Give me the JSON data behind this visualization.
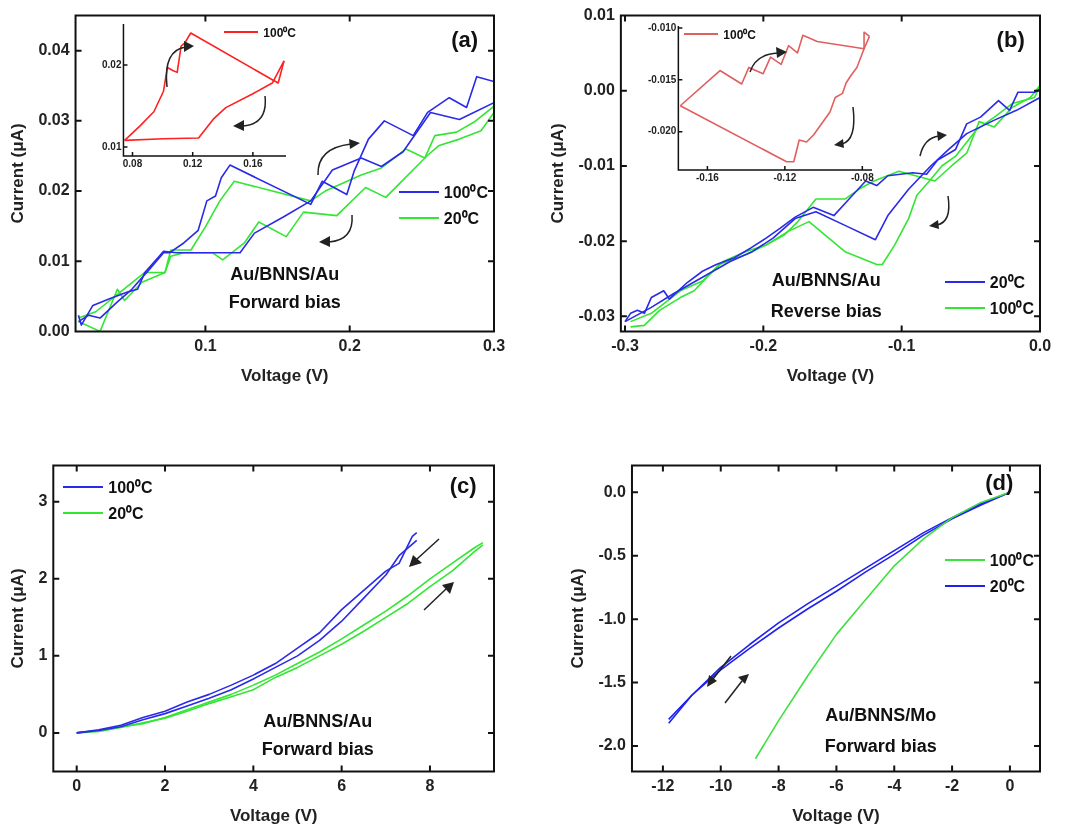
{
  "chart_data": [
    {
      "type": "line",
      "xlabel": "Voltage (V)",
      "ylabel": "Current (μA)",
      "xlim": [
        0.01,
        0.3
      ],
      "ylim": [
        0,
        0.045
      ],
      "xticks": [
        0.1,
        0.2,
        0.3
      ],
      "yticks": [
        {
          "value": 0,
          "label": "0.00"
        },
        {
          "value": 0.01,
          "label": "0.01"
        },
        {
          "value": 0.02,
          "label": "0.02"
        },
        {
          "value": 0.03,
          "label": "0.03"
        },
        {
          "value": 0.04,
          "label": "0.04"
        }
      ],
      "legend": "right",
      "annotations": [
        "(a)",
        "Au/BNNS/Au",
        "Forward bias"
      ],
      "series": [
        {
          "name": "100⁰C",
          "color": "#2a2ae8",
          "x": [
            0.012,
            0.019,
            0.027,
            0.039,
            0.049,
            0.061,
            0.071,
            0.075,
            0.085,
            0.095,
            0.101,
            0.107,
            0.111,
            0.117,
            0.173,
            0.181,
            0.198,
            0.203,
            0.213,
            0.224,
            0.244,
            0.254,
            0.269,
            0.281,
            0.288,
            0.3
          ],
          "values": [
            0.0014,
            0.0023,
            0.0019,
            0.0042,
            0.006,
            0.0088,
            0.0112,
            0.0112,
            0.0126,
            0.0144,
            0.0186,
            0.0193,
            0.0219,
            0.0237,
            0.0181,
            0.0214,
            0.0195,
            0.0228,
            0.0274,
            0.03,
            0.0279,
            0.0312,
            0.0333,
            0.0319,
            0.0363,
            0.0356
          ]
        },
        {
          "color": "#2a2ae8",
          "x": [
            0.3,
            0.276,
            0.256,
            0.237,
            0.222,
            0.208,
            0.188,
            0.173,
            0.154,
            0.134,
            0.124,
            0.11,
            0.08,
            0.071,
            0.058,
            0.053,
            0.046,
            0.034,
            0.022,
            0.014,
            0.012
          ],
          "values": [
            0.0326,
            0.0302,
            0.0312,
            0.0256,
            0.0235,
            0.0247,
            0.023,
            0.0186,
            0.0163,
            0.014,
            0.0112,
            0.0112,
            0.0112,
            0.0114,
            0.0084,
            0.006,
            0.0056,
            0.0047,
            0.0037,
            0.0009,
            0.0023
          ]
        },
        {
          "name": "20⁰C",
          "color": "#33e633",
          "x": [
            0.012,
            0.027,
            0.039,
            0.044,
            0.056,
            0.072,
            0.076,
            0.09,
            0.1,
            0.11,
            0.12,
            0.173,
            0.183,
            0.208,
            0.222,
            0.239,
            0.252,
            0.259,
            0.274,
            0.286,
            0.3
          ],
          "values": [
            0.0014,
            0.0,
            0.006,
            0.0044,
            0.007,
            0.0084,
            0.0116,
            0.0116,
            0.0149,
            0.0186,
            0.0214,
            0.0186,
            0.02,
            0.0223,
            0.0233,
            0.026,
            0.0247,
            0.0279,
            0.0284,
            0.0298,
            0.0321
          ]
        },
        {
          "color": "#33e633",
          "x": [
            0.3,
            0.291,
            0.276,
            0.262,
            0.254,
            0.225,
            0.211,
            0.191,
            0.168,
            0.156,
            0.137,
            0.127,
            0.112,
            0.105,
            0.085,
            0.076,
            0.072,
            0.058,
            0.041,
            0.024,
            0.012
          ],
          "values": [
            0.0312,
            0.0286,
            0.0274,
            0.0265,
            0.0251,
            0.0191,
            0.0205,
            0.0165,
            0.017,
            0.0135,
            0.0156,
            0.0126,
            0.0102,
            0.0112,
            0.0112,
            0.0107,
            0.0084,
            0.0084,
            0.0056,
            0.0028,
            0.0019
          ]
        }
      ]
    },
    {
      "type": "line",
      "xlim": [
        0.074,
        0.182
      ],
      "ylim": [
        0.0089,
        0.025
      ],
      "xticks": [
        {
          "value": 0.08,
          "label": "0.08"
        },
        {
          "value": 0.12,
          "label": "0.12"
        },
        {
          "value": 0.16,
          "label": "0.16"
        }
      ],
      "yticks": [
        {
          "value": 0.01,
          "label": "0.01"
        },
        {
          "value": 0.02,
          "label": "0.02"
        }
      ],
      "legend": "top right",
      "series": [
        {
          "name": "100⁰C",
          "color": "#ff2020",
          "x": [
            0.0748,
            0.0852,
            0.0942,
            0.1006,
            0.1032,
            0.1071,
            0.1097,
            0.1123,
            0.1148,
            0.1187,
            0.1729,
            0.1768,
            0.1807
          ],
          "values": [
            0.0108,
            0.0126,
            0.0143,
            0.0168,
            0.0197,
            0.0193,
            0.0191,
            0.0223,
            0.0227,
            0.0239,
            0.0182,
            0.0178,
            0.0205
          ]
        },
        {
          "color": "#ff2020",
          "x": [
            0.1807,
            0.1729,
            0.16,
            0.142,
            0.1342,
            0.1239,
            0.1006,
            0.0748
          ],
          "values": [
            0.0205,
            0.0178,
            0.0165,
            0.0148,
            0.0135,
            0.0111,
            0.011,
            0.0108
          ]
        }
      ]
    },
    {
      "type": "line",
      "xlabel": "Voltage (V)",
      "ylabel": "Current (μA)",
      "xlim": [
        -0.303,
        0
      ],
      "ylim": [
        -0.032,
        0.01
      ],
      "xticks": [
        -0.3,
        -0.2,
        -0.1,
        {
          "value": 0,
          "label": "0.0"
        }
      ],
      "yticks": [
        {
          "value": -0.03,
          "label": "-0.03"
        },
        {
          "value": -0.02,
          "label": "-0.02"
        },
        {
          "value": -0.01,
          "label": "-0.01"
        },
        {
          "value": 0,
          "label": "0.00"
        },
        {
          "value": 0.01,
          "label": "0.01"
        }
      ],
      "legend": "bottom right",
      "annotations": [
        "(b)",
        "Au/BNNS/Au",
        "Reverse bias"
      ],
      "series": [
        {
          "name": "20⁰C",
          "color": "#2a2ae8",
          "x": [
            -0.3,
            -0.296,
            -0.291,
            -0.286,
            -0.281,
            -0.272,
            -0.268,
            -0.255,
            -0.244,
            -0.234,
            -0.221,
            -0.209,
            -0.198,
            -0.188,
            -0.177,
            -0.164,
            -0.149,
            -0.138,
            -0.126,
            -0.118,
            -0.11,
            -0.092,
            -0.082,
            -0.074,
            -0.061,
            -0.053,
            -0.043,
            -0.03,
            -0.022,
            -0.016,
            -0.004,
            0.0
          ],
          "values": [
            -0.0307,
            -0.0296,
            -0.0292,
            -0.0296,
            -0.0275,
            -0.0266,
            -0.0277,
            -0.0255,
            -0.024,
            -0.0231,
            -0.0222,
            -0.0209,
            -0.0196,
            -0.0183,
            -0.0168,
            -0.0155,
            -0.0166,
            -0.0144,
            -0.012,
            -0.0126,
            -0.0113,
            -0.0109,
            -0.0111,
            -0.0092,
            -0.0078,
            -0.0044,
            -0.0035,
            -0.0013,
            -0.0026,
            -0.0002,
            -0.0002,
            0.0002
          ]
        },
        {
          "color": "#2a2ae8",
          "x": [
            0.0,
            -0.017,
            -0.033,
            -0.053,
            -0.066,
            -0.079,
            -0.095,
            -0.11,
            -0.119,
            -0.141,
            -0.162,
            -0.177,
            -0.193,
            -0.208,
            -0.224,
            -0.244,
            -0.265,
            -0.281,
            -0.3
          ],
          "values": [
            -0.0009,
            -0.0026,
            -0.0039,
            -0.0057,
            -0.0078,
            -0.01,
            -0.0131,
            -0.0166,
            -0.0198,
            -0.0179,
            -0.0161,
            -0.017,
            -0.0196,
            -0.0214,
            -0.0227,
            -0.0248,
            -0.027,
            -0.0288,
            -0.0307
          ]
        },
        {
          "name": "100⁰C",
          "color": "#33e633",
          "x": [
            -0.296,
            -0.286,
            -0.275,
            -0.26,
            -0.25,
            -0.232,
            -0.213,
            -0.198,
            -0.185,
            -0.175,
            -0.162,
            -0.141,
            -0.131,
            -0.12,
            -0.102,
            -0.076,
            -0.064,
            -0.053,
            -0.044,
            -0.033,
            -0.02,
            -0.007,
            0.0
          ],
          "values": [
            -0.0314,
            -0.0312,
            -0.0292,
            -0.0275,
            -0.0266,
            -0.0231,
            -0.0218,
            -0.0205,
            -0.0192,
            -0.0174,
            -0.0144,
            -0.0144,
            -0.0131,
            -0.012,
            -0.0107,
            -0.012,
            -0.01,
            -0.0083,
            -0.0041,
            -0.0048,
            -0.0022,
            -0.0009,
            0.0007
          ]
        },
        {
          "color": "#33e633",
          "x": [
            0.0,
            -0.004,
            -0.02,
            -0.033,
            -0.046,
            -0.061,
            -0.071,
            -0.079,
            -0.089,
            -0.095,
            -0.105,
            -0.114,
            -0.118,
            -0.141,
            -0.167,
            -0.182,
            -0.198,
            -0.213,
            -0.229,
            -0.244,
            -0.26,
            -0.281,
            -0.296
          ],
          "values": [
            0.0007,
            -0.0009,
            -0.0017,
            -0.0035,
            -0.0052,
            -0.0087,
            -0.01,
            -0.0118,
            -0.0139,
            -0.017,
            -0.0205,
            -0.0231,
            -0.0231,
            -0.0214,
            -0.0174,
            -0.0187,
            -0.0205,
            -0.0214,
            -0.0227,
            -0.0253,
            -0.0266,
            -0.0296,
            -0.0307
          ]
        }
      ]
    },
    {
      "type": "line",
      "xlim": [
        -0.175,
        -0.075
      ],
      "ylim": [
        -0.0237,
        -0.0098
      ],
      "xticks": [
        -0.16,
        -0.12,
        -0.08
      ],
      "yticks": [
        {
          "value": -0.02,
          "label": "-0.020"
        },
        {
          "value": -0.015,
          "label": "-0.015"
        },
        {
          "value": -0.01,
          "label": "-0.010"
        }
      ],
      "legend": "top left",
      "series": [
        {
          "name": "100⁰C",
          "color": "#e06060",
          "x": [
            -0.174,
            -0.1535,
            -0.1423,
            -0.1386,
            -0.1312,
            -0.1274,
            -0.1219,
            -0.1181,
            -0.1135,
            -0.1107,
            -0.1033,
            -0.0791,
            -0.0791,
            -0.0763
          ],
          "values": [
            -0.0175,
            -0.0141,
            -0.0154,
            -0.0138,
            -0.0144,
            -0.0128,
            -0.0135,
            -0.0117,
            -0.0124,
            -0.0107,
            -0.0113,
            -0.012,
            -0.0104,
            -0.0108
          ]
        },
        {
          "color": "#e06060",
          "x": [
            -0.0763,
            -0.0791,
            -0.0828,
            -0.0856,
            -0.0884,
            -0.0902,
            -0.094,
            -0.0967,
            -0.1051,
            -0.1088,
            -0.1126,
            -0.1154,
            -0.1191,
            -0.174
          ],
          "values": [
            -0.0108,
            -0.012,
            -0.0138,
            -0.0145,
            -0.0153,
            -0.0163,
            -0.0167,
            -0.0181,
            -0.0203,
            -0.021,
            -0.0208,
            -0.0229,
            -0.0229,
            -0.0175
          ]
        }
      ]
    },
    {
      "type": "line",
      "xlabel": "Voltage (V)",
      "ylabel": "Current (μA)",
      "xlim": [
        -0.53,
        9.45
      ],
      "ylim": [
        -0.5,
        3.47
      ],
      "xticks": [
        0,
        2,
        4,
        6,
        8
      ],
      "yticks": [
        0,
        1,
        2,
        3
      ],
      "legend": "top left",
      "annotations": [
        "(c)",
        "Au/BNNS/Au",
        "Forward bias"
      ],
      "series": [
        {
          "name": "100⁰C",
          "color": "#2a2ae8",
          "x": [
            0,
            0.5,
            1,
            1.5,
            2,
            2.5,
            3,
            3.5,
            4,
            4.5,
            5,
            5.5,
            6,
            6.5,
            7,
            7.3,
            7.6,
            7.7
          ],
          "values": [
            0,
            0.04,
            0.1,
            0.2,
            0.28,
            0.4,
            0.5,
            0.62,
            0.75,
            0.9,
            1.1,
            1.3,
            1.6,
            1.85,
            2.1,
            2.2,
            2.55,
            2.6
          ]
        },
        {
          "color": "#2a2ae8",
          "x": [
            7.7,
            7.3,
            7,
            6.5,
            6,
            5.5,
            5,
            4.5,
            4,
            3.5,
            3,
            2.5,
            2,
            1.5,
            1,
            0.5,
            0
          ],
          "values": [
            2.5,
            2.3,
            2.05,
            1.75,
            1.45,
            1.2,
            1.0,
            0.85,
            0.7,
            0.56,
            0.45,
            0.35,
            0.25,
            0.17,
            0.08,
            0.03,
            0
          ]
        },
        {
          "name": "20⁰C",
          "color": "#33e633",
          "x": [
            0,
            0.5,
            1,
            1.5,
            2,
            2.5,
            3,
            3.5,
            4,
            4.5,
            5,
            5.5,
            6,
            6.5,
            7,
            7.5,
            8,
            8.5,
            9,
            9.2
          ],
          "values": [
            0,
            0.03,
            0.08,
            0.12,
            0.2,
            0.3,
            0.4,
            0.5,
            0.62,
            0.75,
            0.9,
            1.05,
            1.22,
            1.4,
            1.58,
            1.78,
            2.0,
            2.2,
            2.4,
            2.47
          ]
        },
        {
          "color": "#33e633",
          "x": [
            9.2,
            9,
            8.5,
            8,
            7.5,
            7,
            6.5,
            6,
            5.5,
            5,
            4.5,
            4,
            3.5,
            3,
            2.5,
            2,
            1.5,
            1,
            0.5,
            0
          ],
          "values": [
            2.44,
            2.35,
            2.1,
            1.9,
            1.68,
            1.5,
            1.32,
            1.15,
            1.0,
            0.85,
            0.72,
            0.56,
            0.47,
            0.38,
            0.28,
            0.19,
            0.13,
            0.07,
            0.02,
            0
          ]
        }
      ]
    },
    {
      "type": "line",
      "xlabel": "Voltage (V)",
      "ylabel": "Current (μA)",
      "xlim": [
        -13.07,
        1.04
      ],
      "ylim": [
        -2.2,
        0.21
      ],
      "xticks": [
        -12,
        -10,
        -8,
        -6,
        -4,
        -2,
        0
      ],
      "yticks": [
        {
          "value": -2,
          "label": "-2.0"
        },
        {
          "value": -1.5,
          "label": "-1.5"
        },
        {
          "value": -1,
          "label": "-1.0"
        },
        {
          "value": -0.5,
          "label": "-0.5"
        },
        {
          "value": 0,
          "label": "0.0"
        }
      ],
      "legend": "right",
      "annotations": [
        "(d)",
        "Au/BNNS/Mo",
        "Forward bias"
      ],
      "series": [
        {
          "name": "100⁰C",
          "color": "#40e040",
          "x": [
            -8.8,
            -8,
            -7,
            -6,
            -5,
            -4,
            -3,
            -2,
            -1,
            0
          ],
          "values": [
            -2.1,
            -1.8,
            -1.45,
            -1.12,
            -0.85,
            -0.58,
            -0.37,
            -0.2,
            -0.08,
            0
          ]
        },
        {
          "name": "20⁰C",
          "color": "#2020f0",
          "x": [
            -11.8,
            -11,
            -10,
            -9,
            -8,
            -7,
            -6,
            -5,
            -4,
            -3,
            -2,
            -1,
            0
          ],
          "values": [
            -1.82,
            -1.6,
            -1.38,
            -1.2,
            -1.03,
            -0.88,
            -0.74,
            -0.6,
            -0.46,
            -0.32,
            -0.2,
            -0.09,
            0
          ]
        },
        {
          "color": "#2020f0",
          "x": [
            0,
            -1,
            -2,
            -3,
            -4,
            -5,
            -6,
            -7,
            -8,
            -9,
            -10,
            -11,
            -11.8
          ],
          "values": [
            0,
            -0.1,
            -0.21,
            -0.34,
            -0.49,
            -0.63,
            -0.78,
            -0.92,
            -1.07,
            -1.23,
            -1.4,
            -1.6,
            -1.79
          ]
        }
      ]
    }
  ]
}
